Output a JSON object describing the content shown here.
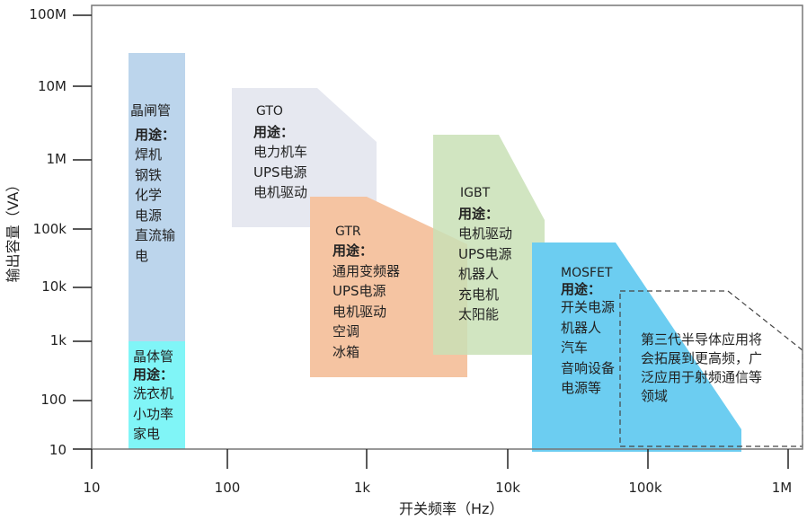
{
  "axes": {
    "x_title": "开关频率（Hz）",
    "y_title": "输出容量（VA）",
    "x_ticks": [
      "10",
      "100",
      "1k",
      "10k",
      "100k",
      "1M"
    ],
    "y_ticks": [
      "100M",
      "10M",
      "1M",
      "100k",
      "10k",
      "1k",
      "100",
      "10"
    ]
  },
  "regions": {
    "thyristor": {
      "name": "晶闸管",
      "usage_label": "用途：",
      "uses": [
        "焊机",
        "钢铁",
        "化学",
        "电源",
        "直流输",
        "电"
      ],
      "color": "#bcd5ec"
    },
    "transistor": {
      "name": "晶体管",
      "usage_label": "用途：",
      "uses": [
        "洗衣机",
        "小功率",
        "家电"
      ],
      "color": "#80f5f7"
    },
    "gto": {
      "name": "GTO",
      "usage_label": "用途：",
      "uses": [
        "电力机车",
        "UPS电源",
        "电机驱动"
      ],
      "color": "#e6e8f0"
    },
    "gtr": {
      "name": "GTR",
      "usage_label": "用途：",
      "uses": [
        "通用变频器",
        "UPS电源",
        "电机驱动",
        "空调",
        "冰箱"
      ],
      "color": "#f5c4a2"
    },
    "igbt": {
      "name": "IGBT",
      "usage_label": "用途：",
      "uses": [
        "电机驱动",
        "UPS电源",
        "机器人",
        "充电机",
        "太阳能"
      ],
      "color": "#c9e0b6"
    },
    "mosfet": {
      "name": "MOSFET",
      "usage_label": "用途：",
      "uses": [
        "开关电源",
        "机器人",
        "汽车",
        "音响设备",
        "电源等"
      ],
      "color": "#6ccdf1"
    }
  },
  "note": {
    "lines": [
      "第三代半导体应用将",
      "会拓展到更高频，广",
      "泛应用于射频通信等",
      "领域"
    ]
  }
}
